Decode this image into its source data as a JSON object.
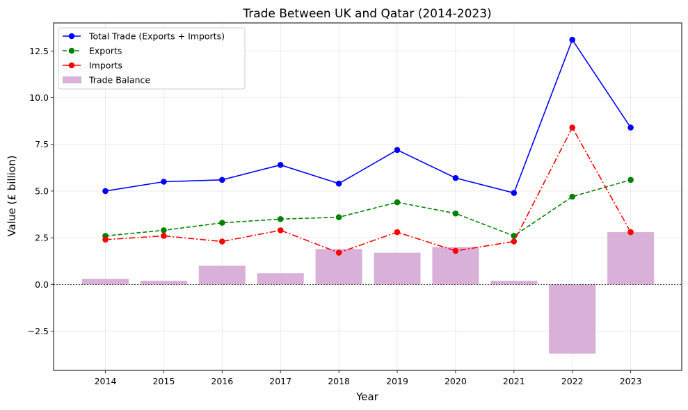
{
  "chart_data": {
    "type": "bar+line",
    "title": "Trade Between UK and Qatar (2014-2023)",
    "xlabel": "Year",
    "ylabel": "Value (£ billion)",
    "categories": [
      "2014",
      "2015",
      "2016",
      "2017",
      "2018",
      "2019",
      "2020",
      "2021",
      "2022",
      "2023"
    ],
    "ylim": [
      -4.6,
      14.0
    ],
    "yticks": [
      -2.5,
      0.0,
      2.5,
      5.0,
      7.5,
      10.0,
      12.5
    ],
    "ytick_labels": [
      "−2.5",
      "0.0",
      "2.5",
      "5.0",
      "7.5",
      "10.0",
      "12.5"
    ],
    "grid": true,
    "legend_position": "top-left",
    "series": [
      {
        "name": "Total Trade (Exports + Imports)",
        "kind": "line",
        "style": "solid",
        "color": "#0000ff",
        "values": [
          5.0,
          5.5,
          5.6,
          6.4,
          5.4,
          7.2,
          5.7,
          4.9,
          13.1,
          8.4
        ]
      },
      {
        "name": "Exports",
        "kind": "line",
        "style": "dashed",
        "color": "#008000",
        "values": [
          2.6,
          2.9,
          3.3,
          3.5,
          3.6,
          4.4,
          3.8,
          2.6,
          4.7,
          5.6
        ]
      },
      {
        "name": "Imports",
        "kind": "line",
        "style": "dashdot",
        "color": "#ff0000",
        "values": [
          2.4,
          2.6,
          2.3,
          2.9,
          1.7,
          2.8,
          1.8,
          2.3,
          8.4,
          2.8
        ]
      },
      {
        "name": "Trade Balance",
        "kind": "bar",
        "color": "#d8b0d8",
        "values": [
          0.3,
          0.2,
          1.0,
          0.6,
          1.9,
          1.7,
          2.0,
          0.2,
          -3.7,
          2.8
        ]
      }
    ]
  }
}
